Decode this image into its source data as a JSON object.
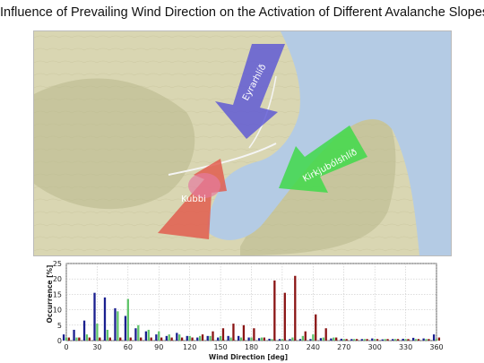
{
  "title": "Influence of Prevailing Wind Direction on the Activation of Different Avalanche Slopes",
  "map": {
    "arrows": [
      {
        "label": "Eyrarhlíð",
        "color": "#5b55d6"
      },
      {
        "label": "Kirkjubólshlíð",
        "color": "#3fd94a"
      },
      {
        "label": "Kubbi",
        "color": "#e2584a"
      }
    ],
    "colors": {
      "water": "#b4cbe4",
      "land": "#d9d6b2",
      "slope_shade": "#b8b88c"
    }
  },
  "chart_data": {
    "type": "bar",
    "xlabel": "Wind Direction  [deg]",
    "ylabel": "Occurrence [%]",
    "xlim": [
      0,
      360
    ],
    "ylim": [
      0,
      25
    ],
    "xticks": [
      "0",
      "30",
      "60",
      "90",
      "120",
      "150",
      "180",
      "210",
      "240",
      "270",
      "300",
      "330",
      "360"
    ],
    "yticks": [
      "0",
      "5",
      "10",
      "15",
      "20",
      "25"
    ],
    "grid": true,
    "x": [
      0,
      10,
      20,
      30,
      40,
      50,
      60,
      70,
      80,
      90,
      100,
      110,
      120,
      130,
      140,
      150,
      160,
      170,
      180,
      190,
      200,
      210,
      220,
      230,
      240,
      250,
      260,
      270,
      280,
      290,
      300,
      310,
      320,
      330,
      340,
      350,
      360
    ],
    "series": [
      {
        "color": "#1a1f8f",
        "values": [
          2,
          3.5,
          6.5,
          15.5,
          14,
          10.5,
          8,
          4,
          3,
          2,
          1.5,
          2.5,
          1.5,
          1,
          1.5,
          1,
          1.5,
          1.5,
          1,
          0.8,
          0.6,
          0.5,
          0.5,
          0.5,
          0.5,
          0.8,
          0.7,
          0.6,
          0.5,
          0.5,
          0.7,
          0.4,
          0.5,
          0.6,
          0.9,
          0.7,
          2
        ]
      },
      {
        "color": "#5fc46a",
        "values": [
          1,
          1,
          2,
          5.5,
          3.5,
          9.5,
          13.5,
          5,
          3.5,
          3,
          2,
          2,
          1.5,
          1.5,
          1.5,
          1.5,
          1,
          1,
          1,
          1,
          0.5,
          0.5,
          1,
          1.5,
          2,
          1,
          1,
          0.5,
          0.5,
          0.5,
          0.5,
          0.5,
          0.5,
          0.5,
          0.5,
          0.5,
          0.5
        ]
      },
      {
        "color": "#8a1414",
        "values": [
          1,
          1,
          1,
          1,
          1,
          1,
          1,
          1,
          1,
          1,
          1,
          1,
          1,
          2,
          3,
          4,
          5.5,
          5,
          4,
          1,
          19.5,
          15.5,
          21,
          3,
          8.5,
          4,
          1,
          0.5,
          0.5,
          0.5,
          0.5,
          0.5,
          0.5,
          0.5,
          0.5,
          0.5,
          1
        ]
      }
    ]
  }
}
